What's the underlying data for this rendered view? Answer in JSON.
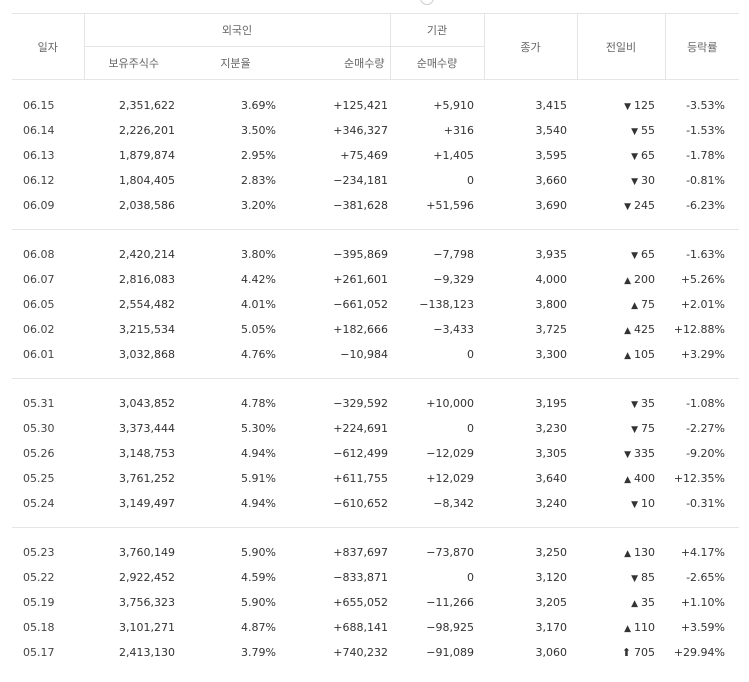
{
  "header": {
    "date": "일자",
    "foreign": "외국인",
    "institution": "기관",
    "holdings": "보유주식수",
    "ratio": "지분율",
    "foreign_net": "순매수량",
    "inst_net": "순매수량",
    "close": "종가",
    "change": "전일비",
    "rate": "등락률"
  },
  "colors": {
    "up": "#e02020",
    "down": "#2a62c9",
    "neutral": "#333333"
  },
  "groups": [
    [
      {
        "date": "06.15",
        "holdings": "2,351,622",
        "ratio": "3.69%",
        "foreign_net": "+125,421",
        "inst_net": "+5,910",
        "close": "3,415",
        "change": "125",
        "dir": "down",
        "rate": "-3.53%"
      },
      {
        "date": "06.14",
        "holdings": "2,226,201",
        "ratio": "3.50%",
        "foreign_net": "+346,327",
        "inst_net": "+316",
        "close": "3,540",
        "change": "55",
        "dir": "down",
        "rate": "-1.53%"
      },
      {
        "date": "06.13",
        "holdings": "1,879,874",
        "ratio": "2.95%",
        "foreign_net": "+75,469",
        "inst_net": "+1,405",
        "close": "3,595",
        "change": "65",
        "dir": "down",
        "rate": "-1.78%"
      },
      {
        "date": "06.12",
        "holdings": "1,804,405",
        "ratio": "2.83%",
        "foreign_net": "−234,181",
        "inst_net": "0",
        "close": "3,660",
        "change": "30",
        "dir": "down",
        "rate": "-0.81%"
      },
      {
        "date": "06.09",
        "holdings": "2,038,586",
        "ratio": "3.20%",
        "foreign_net": "−381,628",
        "inst_net": "+51,596",
        "close": "3,690",
        "change": "245",
        "dir": "down",
        "rate": "-6.23%"
      }
    ],
    [
      {
        "date": "06.08",
        "holdings": "2,420,214",
        "ratio": "3.80%",
        "foreign_net": "−395,869",
        "inst_net": "−7,798",
        "close": "3,935",
        "change": "65",
        "dir": "down",
        "rate": "-1.63%"
      },
      {
        "date": "06.07",
        "holdings": "2,816,083",
        "ratio": "4.42%",
        "foreign_net": "+261,601",
        "inst_net": "−9,329",
        "close": "4,000",
        "change": "200",
        "dir": "up",
        "rate": "+5.26%"
      },
      {
        "date": "06.05",
        "holdings": "2,554,482",
        "ratio": "4.01%",
        "foreign_net": "−661,052",
        "inst_net": "−138,123",
        "close": "3,800",
        "change": "75",
        "dir": "up",
        "rate": "+2.01%"
      },
      {
        "date": "06.02",
        "holdings": "3,215,534",
        "ratio": "5.05%",
        "foreign_net": "+182,666",
        "inst_net": "−3,433",
        "close": "3,725",
        "change": "425",
        "dir": "up",
        "rate": "+12.88%"
      },
      {
        "date": "06.01",
        "holdings": "3,032,868",
        "ratio": "4.76%",
        "foreign_net": "−10,984",
        "inst_net": "0",
        "close": "3,300",
        "change": "105",
        "dir": "up",
        "rate": "+3.29%"
      }
    ],
    [
      {
        "date": "05.31",
        "holdings": "3,043,852",
        "ratio": "4.78%",
        "foreign_net": "−329,592",
        "inst_net": "+10,000",
        "close": "3,195",
        "change": "35",
        "dir": "down",
        "rate": "-1.08%"
      },
      {
        "date": "05.30",
        "holdings": "3,373,444",
        "ratio": "5.30%",
        "foreign_net": "+224,691",
        "inst_net": "0",
        "close": "3,230",
        "change": "75",
        "dir": "down",
        "rate": "-2.27%"
      },
      {
        "date": "05.26",
        "holdings": "3,148,753",
        "ratio": "4.94%",
        "foreign_net": "−612,499",
        "inst_net": "−12,029",
        "close": "3,305",
        "change": "335",
        "dir": "down",
        "rate": "-9.20%"
      },
      {
        "date": "05.25",
        "holdings": "3,761,252",
        "ratio": "5.91%",
        "foreign_net": "+611,755",
        "inst_net": "+12,029",
        "close": "3,640",
        "change": "400",
        "dir": "up",
        "rate": "+12.35%"
      },
      {
        "date": "05.24",
        "holdings": "3,149,497",
        "ratio": "4.94%",
        "foreign_net": "−610,652",
        "inst_net": "−8,342",
        "close": "3,240",
        "change": "10",
        "dir": "down",
        "rate": "-0.31%"
      }
    ],
    [
      {
        "date": "05.23",
        "holdings": "3,760,149",
        "ratio": "5.90%",
        "foreign_net": "+837,697",
        "inst_net": "−73,870",
        "close": "3,250",
        "change": "130",
        "dir": "up",
        "rate": "+4.17%"
      },
      {
        "date": "05.22",
        "holdings": "2,922,452",
        "ratio": "4.59%",
        "foreign_net": "−833,871",
        "inst_net": "0",
        "close": "3,120",
        "change": "85",
        "dir": "down",
        "rate": "-2.65%"
      },
      {
        "date": "05.19",
        "holdings": "3,756,323",
        "ratio": "5.90%",
        "foreign_net": "+655,052",
        "inst_net": "−11,266",
        "close": "3,205",
        "change": "35",
        "dir": "up",
        "rate": "+1.10%"
      },
      {
        "date": "05.18",
        "holdings": "3,101,271",
        "ratio": "4.87%",
        "foreign_net": "+688,141",
        "inst_net": "−98,925",
        "close": "3,170",
        "change": "110",
        "dir": "up",
        "rate": "+3.59%"
      },
      {
        "date": "05.17",
        "holdings": "2,413,130",
        "ratio": "3.79%",
        "foreign_net": "+740,232",
        "inst_net": "−91,089",
        "close": "3,060",
        "change": "705",
        "dir": "upper-limit",
        "rate": "+29.94%"
      }
    ]
  ]
}
